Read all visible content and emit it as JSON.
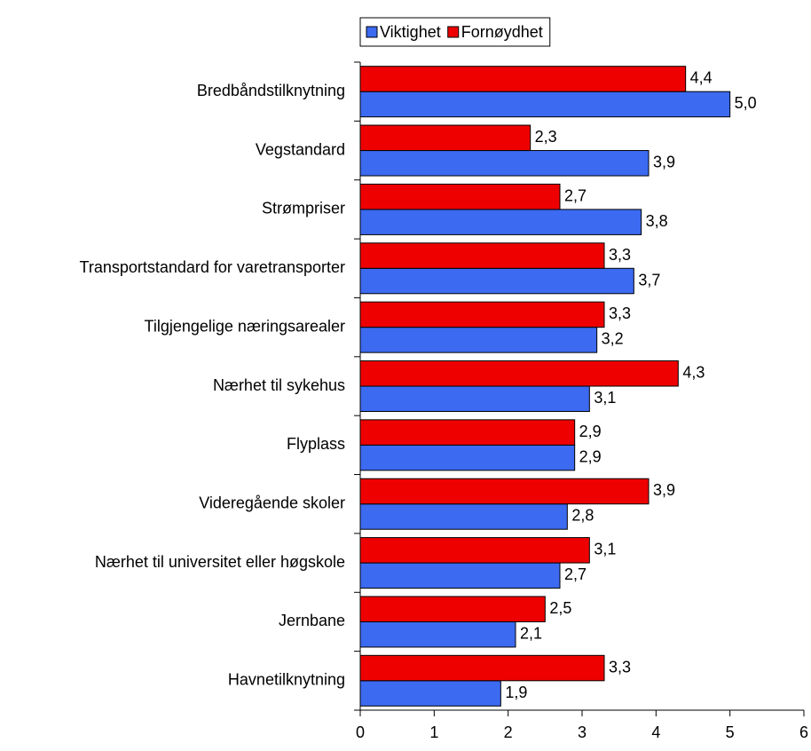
{
  "chart_data": {
    "type": "barh",
    "categories": [
      "Bredbåndstilknytning",
      "Vegstandard",
      "Strømpriser",
      "Transportstandard for varetransporter",
      "Tilgjengelige næringsarealer",
      "Nærhet til sykehus",
      "Flyplass",
      "Videregående skoler",
      "Nærhet til universitet eller høgskole",
      "Jernbane",
      "Havnetilknytning"
    ],
    "series": [
      {
        "name": "Viktighet",
        "color": "#3c6af0",
        "values": [
          5.0,
          3.9,
          3.8,
          3.7,
          3.2,
          3.1,
          2.9,
          2.8,
          2.7,
          2.1,
          1.9
        ],
        "value_labels": [
          "5,0",
          "3,9",
          "3,8",
          "3,7",
          "3,2",
          "3,1",
          "2,9",
          "2,8",
          "2,7",
          "2,1",
          "1,9"
        ]
      },
      {
        "name": "Fornøydhet",
        "color": "#ee0000",
        "values": [
          4.4,
          2.3,
          2.7,
          3.3,
          3.3,
          4.3,
          2.9,
          3.9,
          3.1,
          2.5,
          3.3
        ],
        "value_labels": [
          "4,4",
          "2,3",
          "2,7",
          "3,3",
          "3,3",
          "4,3",
          "2,9",
          "3,9",
          "3,1",
          "2,5",
          "3,3"
        ]
      }
    ],
    "xlim": [
      0,
      6
    ],
    "xticks": [
      0,
      1,
      2,
      3,
      4,
      5,
      6
    ],
    "grid": false,
    "legend": "top"
  }
}
